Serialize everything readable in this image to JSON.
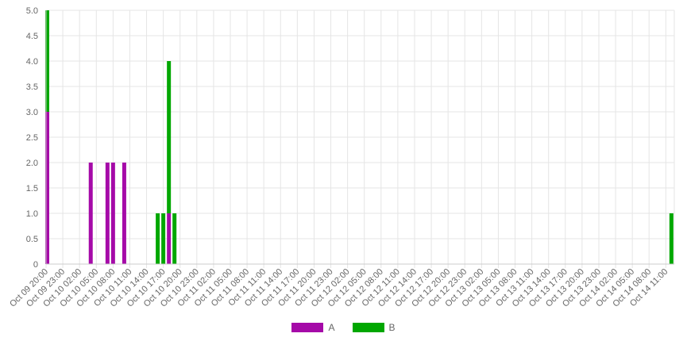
{
  "chart_data": {
    "type": "bar",
    "stacked": true,
    "title": "",
    "xlabel": "",
    "ylabel": "",
    "ylim": [
      0,
      5
    ],
    "yticks": [
      "0",
      "0.5",
      "1.0",
      "1.5",
      "2.0",
      "2.5",
      "3.0",
      "3.5",
      "4.0",
      "4.5",
      "5.0"
    ],
    "grid": true,
    "legend_position": "bottom",
    "x_start": "Oct 09 20:00",
    "x_tick_labels": [
      "Oct 09 20:00",
      "Oct 09 23:00",
      "Oct 10 02:00",
      "Oct 10 05:00",
      "Oct 10 08:00",
      "Oct 10 11:00",
      "Oct 10 14:00",
      "Oct 10 17:00",
      "Oct 10 20:00",
      "Oct 10 23:00",
      "Oct 11 02:00",
      "Oct 11 05:00",
      "Oct 11 08:00",
      "Oct 11 11:00",
      "Oct 11 14:00",
      "Oct 11 17:00",
      "Oct 11 20:00",
      "Oct 11 23:00",
      "Oct 12 02:00",
      "Oct 12 05:00",
      "Oct 12 08:00",
      "Oct 12 11:00",
      "Oct 12 14:00",
      "Oct 12 17:00",
      "Oct 12 20:00",
      "Oct 12 23:00",
      "Oct 13 02:00",
      "Oct 13 05:00",
      "Oct 13 08:00",
      "Oct 13 11:00",
      "Oct 13 14:00",
      "Oct 13 17:00",
      "Oct 13 20:00",
      "Oct 13 23:00",
      "Oct 14 02:00",
      "Oct 14 05:00",
      "Oct 14 08:00",
      "Oct 14 11:00"
    ],
    "series": [
      {
        "name": "A",
        "color": "#a50aa8",
        "points": [
          {
            "x": "Oct 09 20:00",
            "y": 3
          },
          {
            "x": "Oct 10 04:00",
            "y": 2
          },
          {
            "x": "Oct 10 07:00",
            "y": 2
          },
          {
            "x": "Oct 10 08:00",
            "y": 2
          },
          {
            "x": "Oct 10 10:00",
            "y": 2
          },
          {
            "x": "Oct 10 18:00",
            "y": 1
          }
        ]
      },
      {
        "name": "B",
        "color": "#00a700",
        "points": [
          {
            "x": "Oct 09 20:00",
            "y": 2
          },
          {
            "x": "Oct 10 16:00",
            "y": 1
          },
          {
            "x": "Oct 10 17:00",
            "y": 1
          },
          {
            "x": "Oct 10 18:00",
            "y": 3
          },
          {
            "x": "Oct 10 19:00",
            "y": 1
          },
          {
            "x": "Oct 14 12:00",
            "y": 1
          }
        ]
      }
    ]
  }
}
